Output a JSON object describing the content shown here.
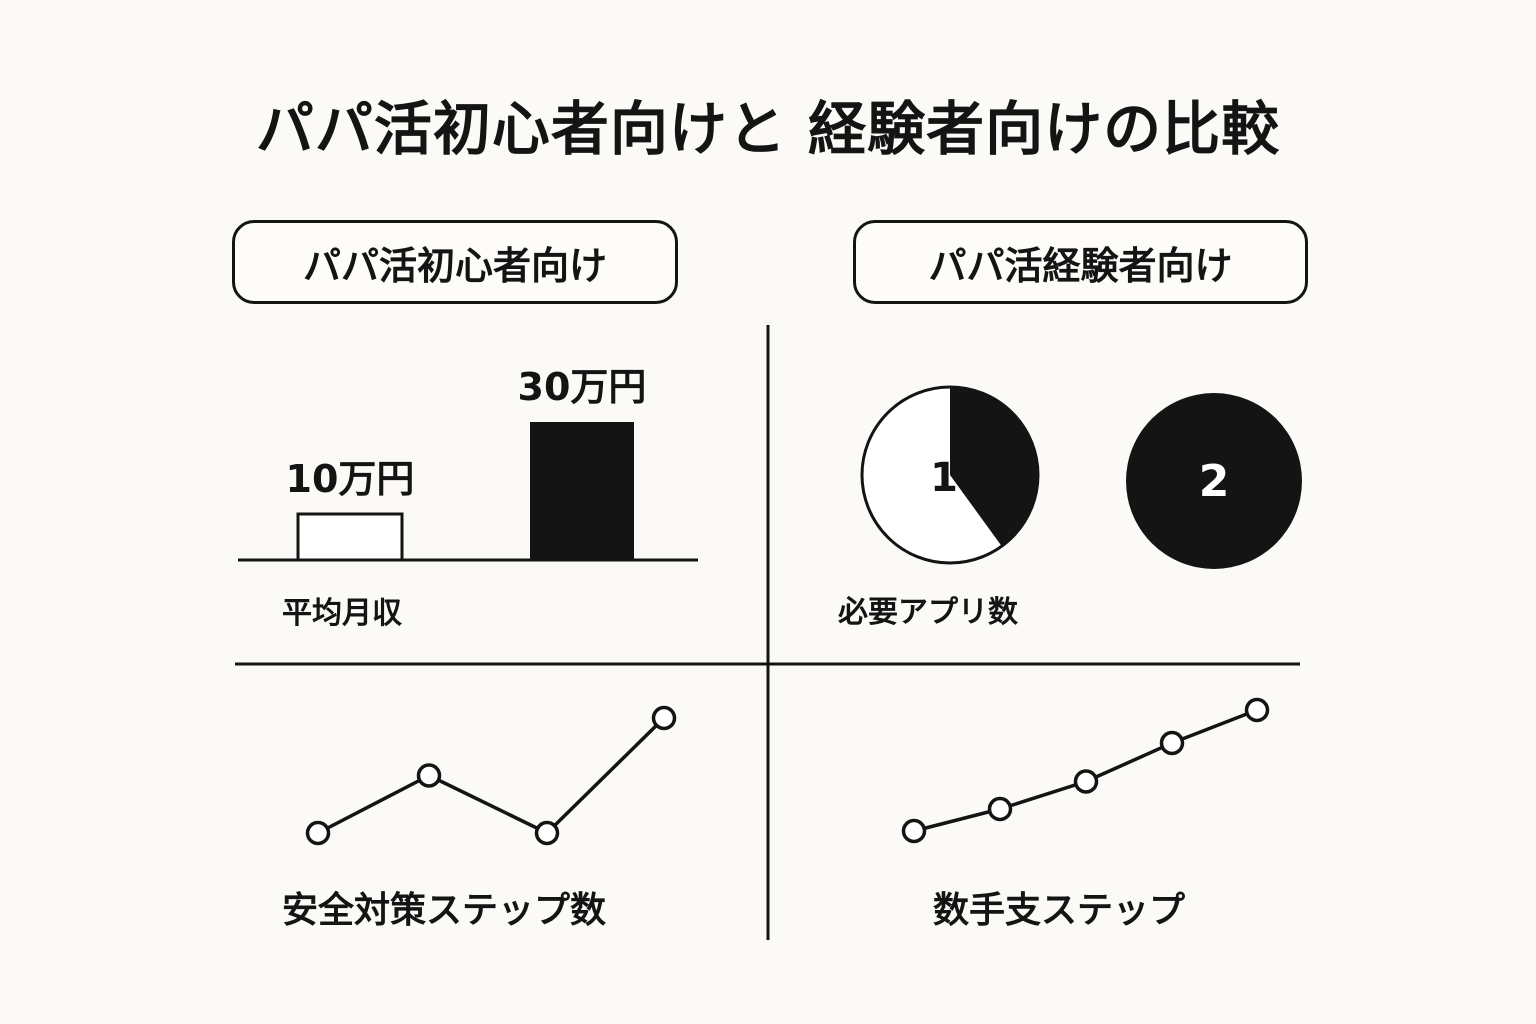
{
  "title": "パパ活初心者向けと 経験者向けの比較",
  "groups": {
    "beginner": "パパ活初心者向け",
    "experienced": "パパ活経験者向け"
  },
  "colors": {
    "ink": "#141414",
    "background": "#fbfaf6"
  },
  "chart_data": [
    {
      "type": "bar",
      "label": "平均月収",
      "categories": [
        "パパ活初心者向け",
        "パパ活経験者向け"
      ],
      "values": [
        10,
        30
      ],
      "value_labels": [
        "10万円",
        "30万円"
      ],
      "fills": [
        "white",
        "black"
      ]
    },
    {
      "type": "pie",
      "label": "必要アプリ数",
      "items": [
        {
          "group": "パパ活初心者向け",
          "value_label": "1",
          "filled_fraction": 0.4
        },
        {
          "group": "パパ活経験者向け",
          "value_label": "2",
          "filled_fraction": 1.0
        }
      ]
    },
    {
      "type": "line",
      "label": "安全対策ステップ数",
      "group": "パパ活初心者向け",
      "values": [
        1,
        2,
        1,
        3
      ]
    },
    {
      "type": "line",
      "label": "数手支ステップ",
      "group": "パパ活経験者向け",
      "values": [
        1,
        1.4,
        1.9,
        2.6,
        3.2
      ]
    }
  ]
}
